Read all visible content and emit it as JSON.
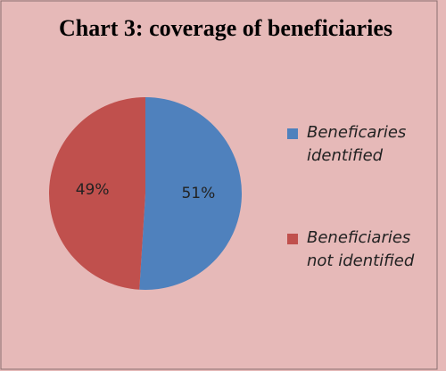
{
  "chart_data": {
    "type": "pie",
    "title": "Chart 3: coverage of beneficiaries",
    "categories": [
      "Beneficaries identified",
      "Beneficiaries not identified"
    ],
    "values": [
      51,
      49
    ],
    "value_labels": [
      "51%",
      "49%"
    ],
    "colors": [
      "#4f81bd",
      "#c0504d"
    ]
  }
}
